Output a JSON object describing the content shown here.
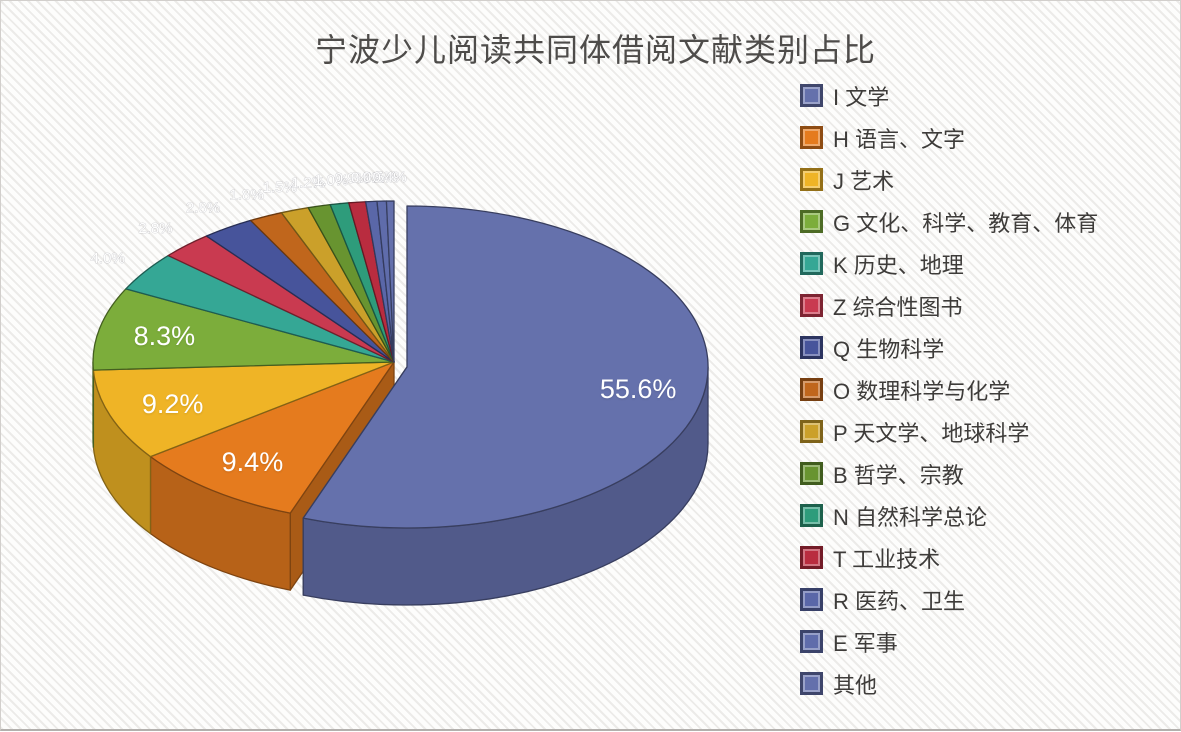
{
  "page": {
    "background": "#fdfdfc",
    "stripe_color": "#d8d3cf",
    "border_color": "#b3b0ad",
    "title_color": "#4e4c4a",
    "legend_text_color": "#3e3c3a",
    "data_label_color": "#ffffff"
  },
  "chart_data": {
    "type": "pie",
    "title": "宁波少儿阅读共同体借阅文献类别占比",
    "unit": "%",
    "legend_position": "right",
    "effect": "3d exploded pie, first slice pulled out, slices start at 12 o'clock going clockwise",
    "small_slice_values_estimated": true,
    "series": [
      {
        "label": "I 文学",
        "value": 55.6,
        "color": "#6571AC"
      },
      {
        "label": "H 语言、文字",
        "value": 9.4,
        "color": "#E57B1E"
      },
      {
        "label": "J 艺术",
        "value": 9.2,
        "color": "#EFB426"
      },
      {
        "label": "G 文化、科学、教育、体育",
        "value": 8.3,
        "color": "#7CAD3B"
      },
      {
        "label": "K 历史、地理",
        "value": 4.0,
        "color": "#35A795"
      },
      {
        "label": "Z 综合性图书",
        "value": 2.8,
        "color": "#C93A50"
      },
      {
        "label": "Q 生物科学",
        "value": 2.8,
        "color": "#47549B"
      },
      {
        "label": "O 数理科学与化学",
        "value": 1.8,
        "color": "#C0661C"
      },
      {
        "label": "P 天文学、地球科学",
        "value": 1.5,
        "color": "#CBA02A"
      },
      {
        "label": "B 哲学、宗教",
        "value": 1.2,
        "color": "#689430"
      },
      {
        "label": "N 自然科学总论",
        "value": 1.0,
        "color": "#2E9C7B"
      },
      {
        "label": "T 工业技术",
        "value": 0.9,
        "color": "#B92C3F"
      },
      {
        "label": "R 医药、卫生",
        "value": 0.6,
        "color": "#5A67A8"
      },
      {
        "label": "E 军事",
        "value": 0.5,
        "color": "#5F6CAB"
      },
      {
        "label": "其他",
        "value": 0.4,
        "color": "#6470AC"
      }
    ],
    "visible_data_labels": [
      "55.6%",
      "9.4%",
      "9.2%",
      "8.3%"
    ]
  }
}
